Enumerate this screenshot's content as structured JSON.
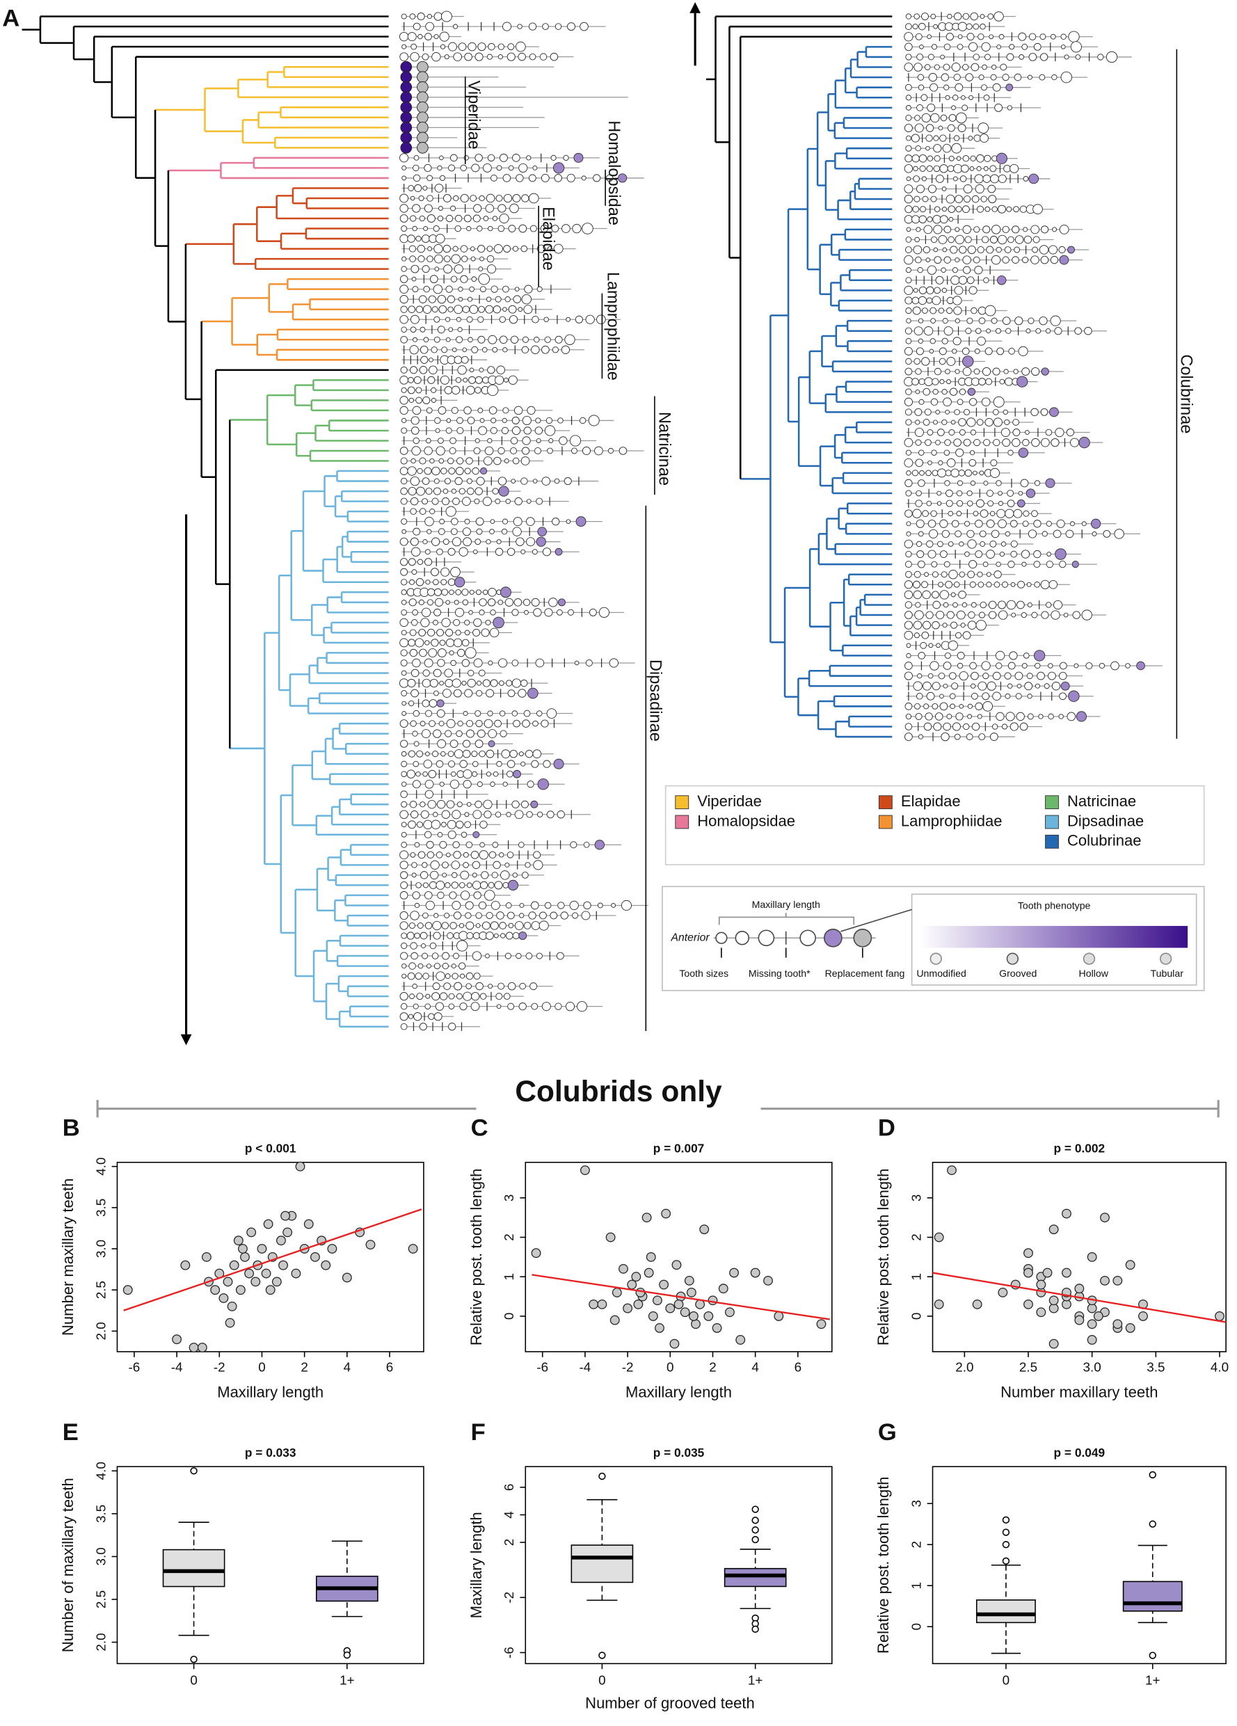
{
  "panel_a": {
    "label": "A",
    "clades": [
      {
        "name": "Viperidae",
        "color": "#f6bd2e"
      },
      {
        "name": "Homalopsidae",
        "color": "#e7789a"
      },
      {
        "name": "Elapidae",
        "color": "#cf4a1a"
      },
      {
        "name": "Lamprophiidae",
        "color": "#f39233"
      },
      {
        "name": "Natricinae",
        "color": "#6bb86a"
      },
      {
        "name": "Dipsadinae",
        "color": "#6ab4de"
      },
      {
        "name": "Colubrinae",
        "color": "#2368b3"
      }
    ],
    "key": {
      "maxillary_length": "Maxillary length",
      "anterior": "Anterior",
      "tooth_sizes": "Tooth sizes",
      "missing_tooth": "Missing tooth*",
      "replacement_fang": "Replacement fang",
      "tooth_phenotype": "Tooth phenotype",
      "phenotypes": [
        "Unmodified",
        "Grooved",
        "Hollow",
        "Tubular"
      ]
    }
  },
  "title": "Colubrids only",
  "box_x_label": "Number of grooved teeth",
  "chart_data": [
    {
      "type": "scatter",
      "panel": "B",
      "title": "p < 0.001",
      "x_label": "Maxillary length",
      "y_label": "Number maxillary teeth",
      "xlim": [
        -6.8,
        7.6
      ],
      "xticks": [
        -6,
        -4,
        -2,
        0,
        2,
        4,
        6
      ],
      "ylim": [
        1.75,
        4.05
      ],
      "yticks": [
        {
          "value": 2,
          "label": "2.0"
        },
        2.5,
        {
          "value": 3,
          "label": "3.0"
        },
        3.5,
        {
          "value": 4,
          "label": "4.0"
        }
      ],
      "color": "#c8c8c8",
      "fit_color": "#e8201f",
      "x": [
        -6.3,
        -4,
        -3.6,
        -3.2,
        -2.8,
        -2.5,
        -2.2,
        -2,
        -1.8,
        -1.6,
        -1.5,
        -1.3,
        -1.1,
        -1,
        -0.8,
        -0.6,
        -0.5,
        -0.3,
        -0.2,
        0,
        0.2,
        0.3,
        0.5,
        0.7,
        0.9,
        1,
        1.2,
        1.4,
        1.6,
        1.8,
        2,
        2.2,
        2.5,
        2.8,
        3,
        3.3,
        4,
        4.6,
        5.1,
        7.1,
        -1.4,
        -0.9,
        0.4,
        1.1,
        -2.6
      ],
      "y": [
        2.5,
        1.9,
        2.8,
        1.8,
        1.8,
        2.6,
        2.5,
        2.7,
        2.4,
        2.6,
        2.1,
        2.8,
        3.1,
        2.5,
        2.9,
        2.7,
        3.2,
        2.6,
        2.8,
        3.0,
        2.7,
        3.3,
        2.9,
        2.6,
        3.1,
        2.8,
        3.2,
        3.4,
        2.7,
        4.0,
        3.0,
        3.3,
        2.9,
        3.1,
        2.8,
        3.0,
        2.65,
        3.2,
        3.05,
        3.0,
        2.3,
        3.0,
        2.5,
        3.4,
        2.9
      ],
      "fit": {
        "x": [
          -6.5,
          7.5
        ],
        "y": [
          2.25,
          3.48
        ]
      }
    },
    {
      "type": "scatter",
      "panel": "C",
      "title": "p = 0.007",
      "x_label": "Maxillary length",
      "y_label": "Relative post. tooth length",
      "xlim": [
        -6.8,
        7.6
      ],
      "xticks": [
        -6,
        -4,
        -2,
        0,
        2,
        4,
        6
      ],
      "ylim": [
        -0.9,
        3.9
      ],
      "yticks": [
        0,
        1,
        2,
        3
      ],
      "color": "#c8c8c8",
      "fit_color": "#e8201f",
      "x": [
        -6.3,
        -4,
        -3.6,
        -3.2,
        -2.8,
        -2.5,
        -2.2,
        -2,
        -1.8,
        -1.6,
        -1.5,
        -1.3,
        -1.1,
        -1,
        -0.8,
        -0.6,
        -0.5,
        -0.3,
        -0.2,
        0,
        0.2,
        0.3,
        0.5,
        0.7,
        0.9,
        1,
        1.2,
        1.4,
        1.6,
        1.8,
        2,
        2.2,
        2.5,
        2.8,
        3,
        3.3,
        4,
        4.6,
        5.1,
        7.1,
        -1.4,
        -0.9,
        0.4,
        1.1,
        -2.6
      ],
      "y": [
        1.6,
        3.7,
        0.3,
        0.3,
        2.0,
        0.6,
        1.2,
        0.2,
        0.8,
        1.0,
        0.3,
        0.5,
        2.5,
        1.1,
        0.0,
        0.4,
        -0.3,
        0.8,
        2.6,
        0.2,
        -0.7,
        1.3,
        0.5,
        0.1,
        0.9,
        0.6,
        -0.2,
        0.3,
        2.2,
        0.0,
        0.4,
        -0.3,
        0.7,
        0.1,
        1.1,
        -0.6,
        1.1,
        0.9,
        0.0,
        -0.2,
        0.6,
        1.5,
        0.3,
        0.0,
        -0.1
      ],
      "fit": {
        "x": [
          -6.5,
          7.5
        ],
        "y": [
          1.05,
          -0.08
        ]
      }
    },
    {
      "type": "scatter",
      "panel": "D",
      "title": "p = 0.002",
      "x_label": "Number maxillary teeth",
      "y_label": "Relative post. tooth length",
      "xlim": [
        1.75,
        4.05
      ],
      "xticks": [
        {
          "value": 2,
          "label": "2.0"
        },
        2.5,
        {
          "value": 3,
          "label": "3.0"
        },
        3.5,
        {
          "value": 4,
          "label": "4.0"
        }
      ],
      "ylim": [
        -0.9,
        3.9
      ],
      "yticks": [
        0,
        1,
        2,
        3
      ],
      "color": "#c8c8c8",
      "fit_color": "#e8201f",
      "x": [
        2.5,
        1.9,
        2.8,
        1.8,
        1.8,
        2.6,
        2.5,
        2.7,
        2.4,
        2.6,
        2.1,
        2.8,
        3.1,
        2.5,
        2.9,
        2.7,
        3.2,
        2.6,
        2.8,
        3.0,
        2.7,
        3.3,
        2.9,
        2.6,
        3.1,
        2.8,
        3.2,
        3.4,
        2.7,
        4.0,
        3.0,
        3.3,
        2.9,
        3.1,
        2.8,
        3.0,
        2.65,
        3.2,
        3.05,
        3.0,
        2.3,
        3.0,
        2.5,
        3.4,
        2.9
      ],
      "y": [
        1.6,
        3.7,
        0.3,
        0.3,
        2.0,
        0.6,
        1.2,
        0.2,
        0.8,
        1.0,
        0.3,
        0.5,
        2.5,
        1.1,
        0.0,
        0.4,
        -0.3,
        0.8,
        2.6,
        0.2,
        -0.7,
        1.3,
        0.5,
        0.1,
        0.9,
        0.6,
        -0.2,
        0.3,
        2.2,
        0.0,
        0.4,
        -0.3,
        0.7,
        0.1,
        1.1,
        -0.6,
        1.1,
        0.9,
        0.0,
        -0.2,
        0.6,
        1.5,
        0.3,
        0.0,
        -0.1
      ],
      "fit": {
        "x": [
          1.75,
          4.05
        ],
        "y": [
          1.1,
          -0.15
        ]
      }
    },
    {
      "type": "box",
      "panel": "E",
      "title": "p = 0.033",
      "y_label": "Number of maxillary teeth",
      "categories": [
        "0",
        "1+"
      ],
      "colors": [
        "#e0e0e0",
        "#9c8cc8"
      ],
      "ylim": [
        1.75,
        4.05
      ],
      "yticks": [
        {
          "value": 2,
          "label": "2.0"
        },
        2.5,
        {
          "value": 3,
          "label": "3.0"
        },
        3.5,
        {
          "value": 4,
          "label": "4.0"
        }
      ],
      "boxes": [
        {
          "whislo": 2.08,
          "q1": 2.65,
          "med": 2.83,
          "q3": 3.08,
          "whishi": 3.4,
          "outliers": [
            4.0,
            1.8
          ]
        },
        {
          "whislo": 2.3,
          "q1": 2.48,
          "med": 2.63,
          "q3": 2.77,
          "whishi": 3.18,
          "outliers": [
            1.9,
            1.85
          ]
        }
      ]
    },
    {
      "type": "box",
      "panel": "F",
      "title": "p = 0.035",
      "y_label": "Maxillary length",
      "categories": [
        "0",
        "1+"
      ],
      "colors": [
        "#e0e0e0",
        "#9c8cc8"
      ],
      "ylim": [
        -6.8,
        7.5
      ],
      "yticks": [
        -6,
        -2,
        2,
        4,
        6
      ],
      "boxes": [
        {
          "whislo": -2.2,
          "q1": -0.9,
          "med": 0.9,
          "q3": 1.8,
          "whishi": 5.1,
          "outliers": [
            6.8,
            -6.2
          ]
        },
        {
          "whislo": -2.8,
          "q1": -1.2,
          "med": -0.4,
          "q3": 0.1,
          "whishi": 1.5,
          "outliers": [
            4.4,
            3.6,
            2.9,
            2.2,
            -3.5,
            -3.9,
            -4.3
          ]
        }
      ]
    },
    {
      "type": "box",
      "panel": "G",
      "title": "p = 0.049",
      "y_label": "Relative post. tooth length",
      "categories": [
        "0",
        "1+"
      ],
      "colors": [
        "#e0e0e0",
        "#9c8cc8"
      ],
      "ylim": [
        -0.9,
        3.9
      ],
      "yticks": [
        0,
        1,
        2,
        3
      ],
      "boxes": [
        {
          "whislo": -0.65,
          "q1": 0.1,
          "med": 0.3,
          "q3": 0.65,
          "whishi": 1.5,
          "outliers": [
            2.6,
            2.3,
            2.0,
            1.6
          ]
        },
        {
          "whislo": 0.1,
          "q1": 0.38,
          "med": 0.57,
          "q3": 1.1,
          "whishi": 1.98,
          "outliers": [
            3.7,
            2.5,
            -0.7
          ]
        }
      ]
    }
  ]
}
